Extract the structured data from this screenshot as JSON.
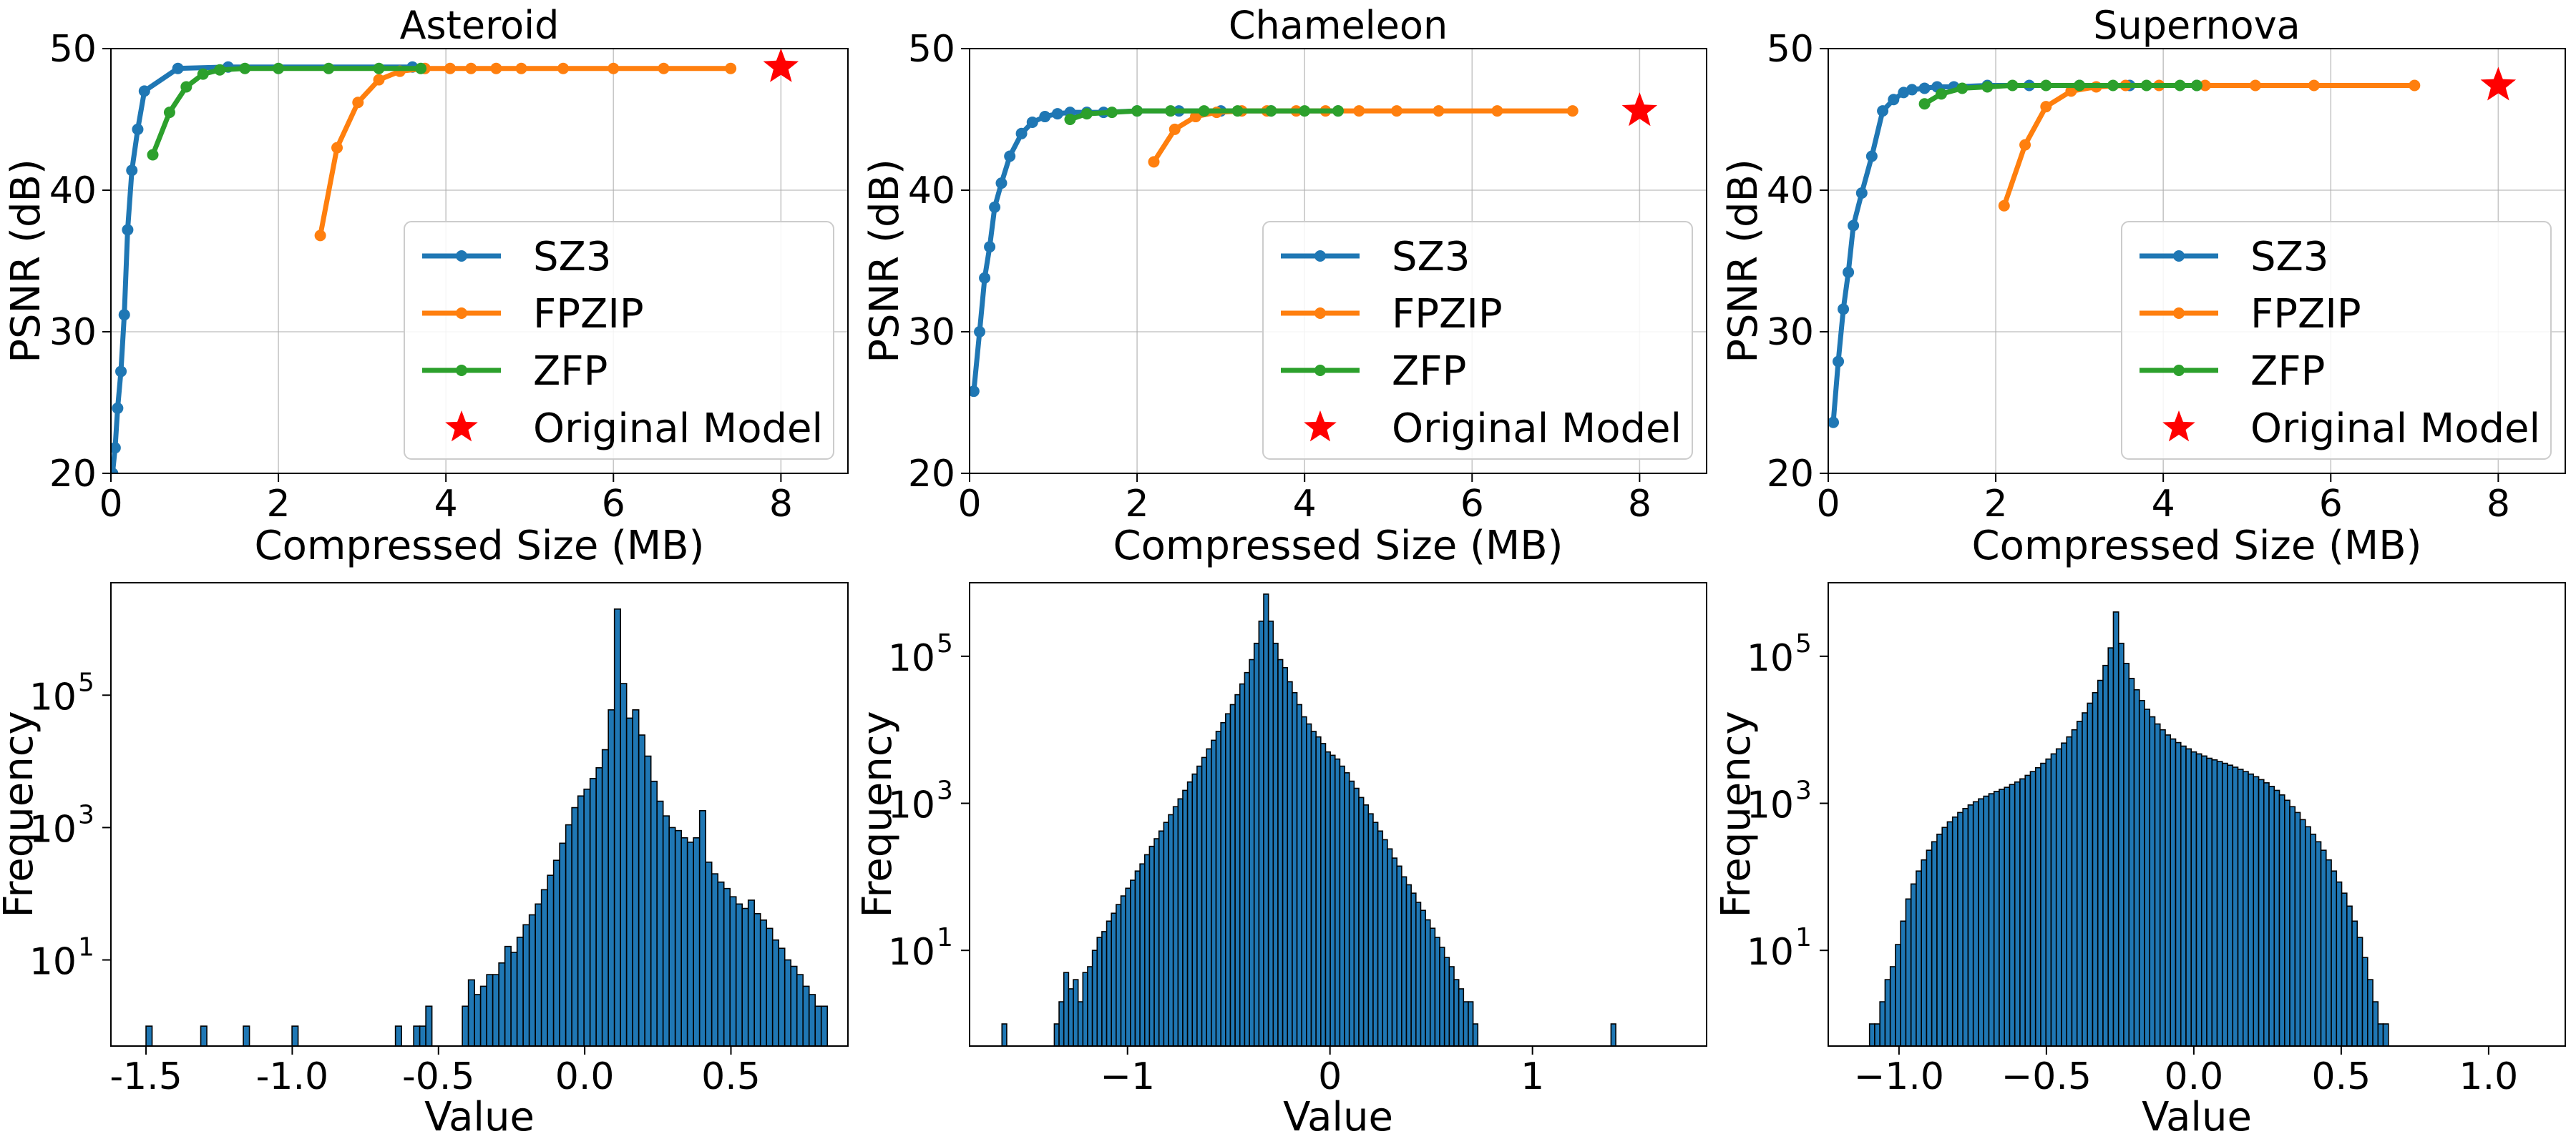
{
  "chart_data": [
    {
      "type": "line",
      "title": "Asteroid",
      "xlabel": "Compressed Size (MB)",
      "ylabel": "PSNR (dB)",
      "xlim": [
        0,
        8.8
      ],
      "ylim": [
        20,
        50
      ],
      "xticks": [
        0,
        2,
        4,
        6,
        8
      ],
      "yticks": [
        20,
        30,
        40,
        50
      ],
      "grid": true,
      "legend": "lower-right",
      "series": [
        {
          "name": "SZ3",
          "color": "#1f77b4",
          "x": [
            0.02,
            0.05,
            0.08,
            0.12,
            0.16,
            0.2,
            0.25,
            0.32,
            0.4,
            0.8,
            1.4,
            3.6
          ],
          "y": [
            20.0,
            21.8,
            24.6,
            27.2,
            31.2,
            37.2,
            41.4,
            44.3,
            47.0,
            48.6,
            48.7,
            48.7
          ]
        },
        {
          "name": "FPZIP",
          "color": "#ff7f0e",
          "x": [
            2.5,
            2.7,
            2.95,
            3.2,
            3.45,
            3.75,
            4.05,
            4.3,
            4.6,
            4.9,
            5.4,
            6.0,
            6.6,
            7.4
          ],
          "y": [
            36.8,
            43.0,
            46.2,
            47.8,
            48.4,
            48.6,
            48.6,
            48.6,
            48.6,
            48.6,
            48.6,
            48.6,
            48.6,
            48.6
          ]
        },
        {
          "name": "ZFP",
          "color": "#2ca02c",
          "x": [
            0.5,
            0.7,
            0.9,
            1.1,
            1.3,
            1.6,
            2.0,
            2.6,
            3.2,
            3.7
          ],
          "y": [
            42.5,
            45.5,
            47.3,
            48.2,
            48.5,
            48.6,
            48.6,
            48.6,
            48.6,
            48.6
          ]
        },
        {
          "name": "Original Model",
          "color": "#ff0000",
          "marker": "star",
          "x": [
            8.0
          ],
          "y": [
            48.7
          ]
        }
      ]
    },
    {
      "type": "line",
      "title": "Chameleon",
      "xlabel": "Compressed Size (MB)",
      "ylabel": "PSNR (dB)",
      "xlim": [
        0,
        8.8
      ],
      "ylim": [
        20,
        50
      ],
      "xticks": [
        0,
        2,
        4,
        6,
        8
      ],
      "yticks": [
        20,
        30,
        40,
        50
      ],
      "grid": true,
      "legend": "lower-right",
      "series": [
        {
          "name": "SZ3",
          "color": "#1f77b4",
          "x": [
            0.05,
            0.12,
            0.18,
            0.24,
            0.3,
            0.38,
            0.48,
            0.62,
            0.75,
            0.9,
            1.05,
            1.2,
            1.4,
            1.6,
            2.0,
            2.5,
            3.0,
            3.6,
            4.4
          ],
          "y": [
            25.8,
            30.0,
            33.8,
            36.0,
            38.8,
            40.5,
            42.4,
            44.0,
            44.8,
            45.2,
            45.4,
            45.5,
            45.5,
            45.5,
            45.6,
            45.6,
            45.6,
            45.6,
            45.6
          ]
        },
        {
          "name": "FPZIP",
          "color": "#ff7f0e",
          "x": [
            2.2,
            2.45,
            2.7,
            2.95,
            3.25,
            3.55,
            3.9,
            4.25,
            4.65,
            5.1,
            5.6,
            6.3,
            7.2
          ],
          "y": [
            42.0,
            44.3,
            45.2,
            45.5,
            45.6,
            45.6,
            45.6,
            45.6,
            45.6,
            45.6,
            45.6,
            45.6,
            45.6
          ]
        },
        {
          "name": "ZFP",
          "color": "#2ca02c",
          "x": [
            1.2,
            1.4,
            1.7,
            2.0,
            2.4,
            2.8,
            3.2,
            3.6,
            4.0,
            4.4
          ],
          "y": [
            45.0,
            45.4,
            45.5,
            45.6,
            45.6,
            45.6,
            45.6,
            45.6,
            45.6,
            45.6
          ]
        },
        {
          "name": "Original Model",
          "color": "#ff0000",
          "marker": "star",
          "x": [
            8.0
          ],
          "y": [
            45.6
          ]
        }
      ]
    },
    {
      "type": "line",
      "title": "Supernova",
      "xlabel": "Compressed Size (MB)",
      "ylabel": "PSNR (dB)",
      "xlim": [
        0,
        8.8
      ],
      "ylim": [
        20,
        50
      ],
      "xticks": [
        0,
        2,
        4,
        6,
        8
      ],
      "yticks": [
        20,
        30,
        40,
        50
      ],
      "grid": true,
      "legend": "lower-right",
      "series": [
        {
          "name": "SZ3",
          "color": "#1f77b4",
          "x": [
            0.06,
            0.12,
            0.18,
            0.24,
            0.3,
            0.4,
            0.52,
            0.65,
            0.78,
            0.9,
            1.0,
            1.15,
            1.3,
            1.5,
            1.9,
            2.4,
            3.0,
            3.6,
            4.4
          ],
          "y": [
            23.6,
            27.9,
            31.6,
            34.2,
            37.5,
            39.8,
            42.4,
            45.6,
            46.4,
            46.9,
            47.1,
            47.2,
            47.3,
            47.3,
            47.4,
            47.4,
            47.4,
            47.4,
            47.4
          ]
        },
        {
          "name": "FPZIP",
          "color": "#ff7f0e",
          "x": [
            2.1,
            2.35,
            2.6,
            2.9,
            3.2,
            3.55,
            3.95,
            4.5,
            5.1,
            5.8,
            7.0
          ],
          "y": [
            38.9,
            43.2,
            45.9,
            47.0,
            47.3,
            47.4,
            47.4,
            47.4,
            47.4,
            47.4,
            47.4
          ]
        },
        {
          "name": "ZFP",
          "color": "#2ca02c",
          "x": [
            1.15,
            1.35,
            1.6,
            1.9,
            2.2,
            2.6,
            3.0,
            3.4,
            3.8,
            4.2,
            4.4
          ],
          "y": [
            46.1,
            46.8,
            47.2,
            47.3,
            47.4,
            47.4,
            47.4,
            47.4,
            47.4,
            47.4,
            47.4
          ]
        },
        {
          "name": "Original Model",
          "color": "#ff0000",
          "marker": "star",
          "x": [
            8.0
          ],
          "y": [
            47.4
          ]
        }
      ]
    },
    {
      "type": "bar",
      "title": "",
      "xlabel": "Value",
      "ylabel": "Frequency",
      "yscale": "log",
      "xlim": [
        -1.62,
        0.9
      ],
      "ylim": [
        0.5,
        5000000
      ],
      "xticks": [
        "-1.5",
        "-1.0",
        "-0.5",
        "0.0",
        "0.5"
      ],
      "yticks": [
        "10",
        "10",
        "10"
      ],
      "ytick_exponents": [
        "1",
        "3",
        "5"
      ],
      "color": "#1f77b4",
      "bins": {
        "start": -1.5,
        "width": 0.0208
      },
      "values": [
        1,
        0,
        0,
        0,
        0,
        0,
        0,
        0,
        0,
        1,
        0,
        0,
        0,
        0,
        0,
        0,
        1,
        0,
        0,
        0,
        0,
        0,
        0,
        0,
        1,
        0,
        0,
        0,
        0,
        0,
        0,
        0,
        0,
        0,
        0,
        0,
        0,
        0,
        0,
        0,
        0,
        1,
        0,
        0,
        1,
        1,
        2,
        0,
        0,
        0,
        0,
        0,
        2,
        5,
        3,
        4,
        6,
        6,
        9,
        16,
        13,
        22,
        34,
        48,
        70,
        115,
        190,
        320,
        580,
        1100,
        2000,
        3000,
        3800,
        5500,
        8000,
        15000,
        60000,
        2000000,
        150000,
        45000,
        60000,
        25000,
        12000,
        5000,
        2500,
        1500,
        1000,
        900,
        700,
        600,
        700,
        1800,
        300,
        200,
        150,
        120,
        90,
        70,
        60,
        80,
        50,
        40,
        30,
        20,
        15,
        10,
        8,
        6,
        4,
        3,
        2,
        2
      ]
    },
    {
      "type": "bar",
      "title": "",
      "xlabel": "Value",
      "ylabel": "Frequency",
      "yscale": "log",
      "xlim": [
        -1.78,
        1.86
      ],
      "ylim": [
        0.5,
        1000000
      ],
      "xticks": [
        "−1",
        "0",
        "1"
      ],
      "yticks": [
        "10",
        "10",
        "10"
      ],
      "ytick_exponents": [
        "1",
        "3",
        "5"
      ],
      "color": "#1f77b4",
      "bins": {
        "start": -1.62,
        "width": 0.0235
      },
      "values": [
        1,
        0,
        0,
        0,
        0,
        0,
        0,
        0,
        0,
        0,
        0,
        1,
        2,
        5,
        3,
        4,
        2,
        5,
        6,
        10,
        15,
        18,
        25,
        32,
        42,
        55,
        70,
        90,
        120,
        150,
        200,
        260,
        330,
        420,
        550,
        700,
        900,
        1150,
        1500,
        1950,
        2500,
        3200,
        4200,
        5500,
        7200,
        9500,
        12500,
        16500,
        22000,
        30000,
        42000,
        60000,
        90000,
        150000,
        300000,
        700000,
        300000,
        150000,
        90000,
        70000,
        45000,
        32000,
        22000,
        15000,
        12000,
        9500,
        8000,
        6500,
        5000,
        4500,
        4000,
        3200,
        2600,
        2000,
        1600,
        1200,
        950,
        720,
        550,
        420,
        320,
        240,
        180,
        140,
        100,
        78,
        60,
        45,
        35,
        26,
        20,
        15,
        11,
        8,
        6,
        4,
        3,
        2,
        2,
        1,
        0,
        0,
        0,
        0,
        0,
        0,
        0,
        0,
        0,
        0,
        0,
        0,
        0,
        0,
        0,
        0,
        0,
        0,
        0,
        0,
        0,
        0,
        0,
        0,
        0,
        0,
        0,
        0,
        1
      ]
    },
    {
      "type": "bar",
      "title": "",
      "xlabel": "Value",
      "ylabel": "Frequency",
      "yscale": "log",
      "xlim": [
        -1.24,
        1.26
      ],
      "ylim": [
        0.5,
        1000000
      ],
      "xticks": [
        "−1.0",
        "−0.5",
        "0.0",
        "0.5",
        "1.0"
      ],
      "yticks": [
        "10",
        "10",
        "10"
      ],
      "ytick_exponents": [
        "1",
        "3",
        "5"
      ],
      "color": "#1f77b4",
      "bins": {
        "start": -1.1,
        "width": 0.0176
      },
      "values": [
        1,
        1,
        2,
        4,
        6,
        12,
        25,
        50,
        80,
        120,
        170,
        230,
        300,
        380,
        470,
        560,
        650,
        750,
        850,
        950,
        1050,
        1150,
        1250,
        1350,
        1450,
        1550,
        1650,
        1800,
        1950,
        2150,
        2400,
        2700,
        3050,
        3500,
        4000,
        4700,
        5500,
        6600,
        8000,
        10000,
        13000,
        17000,
        23000,
        32000,
        47000,
        75000,
        130000,
        400000,
        150000,
        80000,
        50000,
        35000,
        25000,
        19000,
        15000,
        12000,
        10000,
        8500,
        7500,
        6700,
        6000,
        5500,
        5000,
        4700,
        4400,
        4100,
        3900,
        3700,
        3500,
        3300,
        3100,
        2900,
        2700,
        2500,
        2300,
        2100,
        1900,
        1700,
        1500,
        1300,
        1100,
        900,
        750,
        600,
        480,
        380,
        300,
        230,
        170,
        120,
        85,
        60,
        40,
        25,
        15,
        8,
        4,
        2,
        1,
        1
      ]
    }
  ]
}
